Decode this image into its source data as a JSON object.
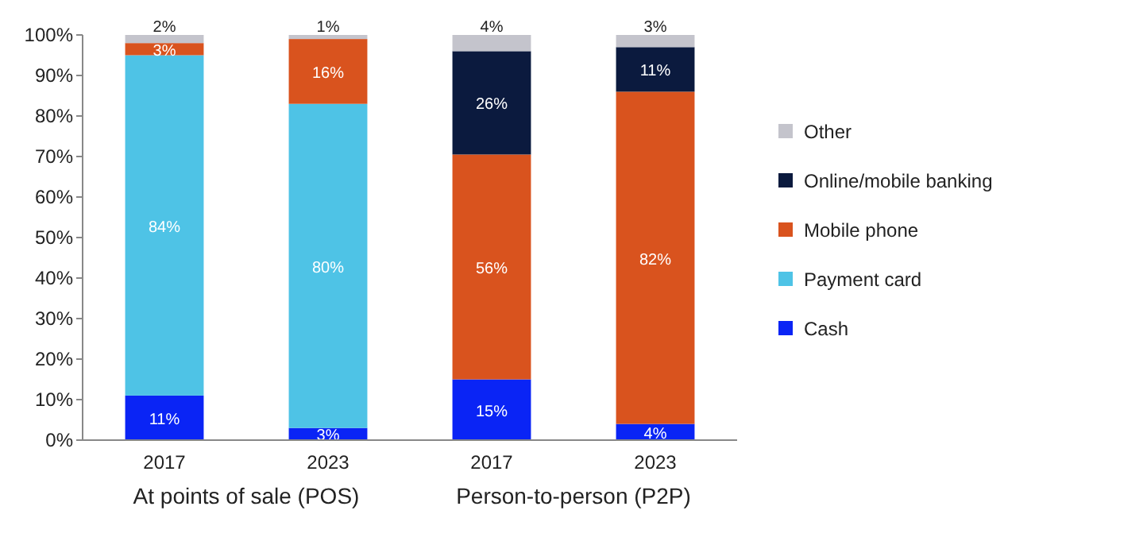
{
  "chart_data": {
    "type": "bar",
    "stacked": true,
    "categories": [
      "2017",
      "2023",
      "2017",
      "2023"
    ],
    "annotations": [
      "At points of sale (POS)",
      "Person-to-person (P2P)"
    ],
    "ylim": [
      0,
      100
    ],
    "yticks": [
      {
        "value": 0,
        "label": "0%"
      },
      {
        "value": 10,
        "label": "10%"
      },
      {
        "value": 20,
        "label": "20%"
      },
      {
        "value": 30,
        "label": "30%"
      },
      {
        "value": 40,
        "label": "40%"
      },
      {
        "value": 50,
        "label": "50%"
      },
      {
        "value": 60,
        "label": "60%"
      },
      {
        "value": 70,
        "label": "70%"
      },
      {
        "value": 80,
        "label": "80%"
      },
      {
        "value": 90,
        "label": "90%"
      },
      {
        "value": 100,
        "label": "100%"
      }
    ],
    "legend": "right",
    "grid": false,
    "series": [
      {
        "name": "Cash",
        "color": "#0a24f5",
        "values": [
          11,
          3,
          15,
          4
        ],
        "value_labels": [
          "11%",
          "3%",
          "15%",
          "4%"
        ]
      },
      {
        "name": "Payment card",
        "color": "#4ec3e6",
        "values": [
          84,
          80,
          null,
          null
        ],
        "value_labels": [
          "84%",
          "80%",
          null,
          null
        ]
      },
      {
        "name": "Mobile phone",
        "color": "#d9531e",
        "values": [
          3,
          16,
          55.5,
          82
        ],
        "value_labels": [
          "3%",
          "16%",
          "56%",
          "82%"
        ]
      },
      {
        "name": "Online/mobile banking",
        "color": "#0b1a3e",
        "values": [
          null,
          null,
          25.5,
          11
        ],
        "value_labels": [
          null,
          null,
          "26%",
          "11%"
        ]
      },
      {
        "name": "Other",
        "color": "#c4c4cc",
        "values": [
          2,
          1,
          4,
          3
        ],
        "value_labels": [
          "2%",
          "1%",
          "4%",
          "3%"
        ]
      }
    ]
  }
}
